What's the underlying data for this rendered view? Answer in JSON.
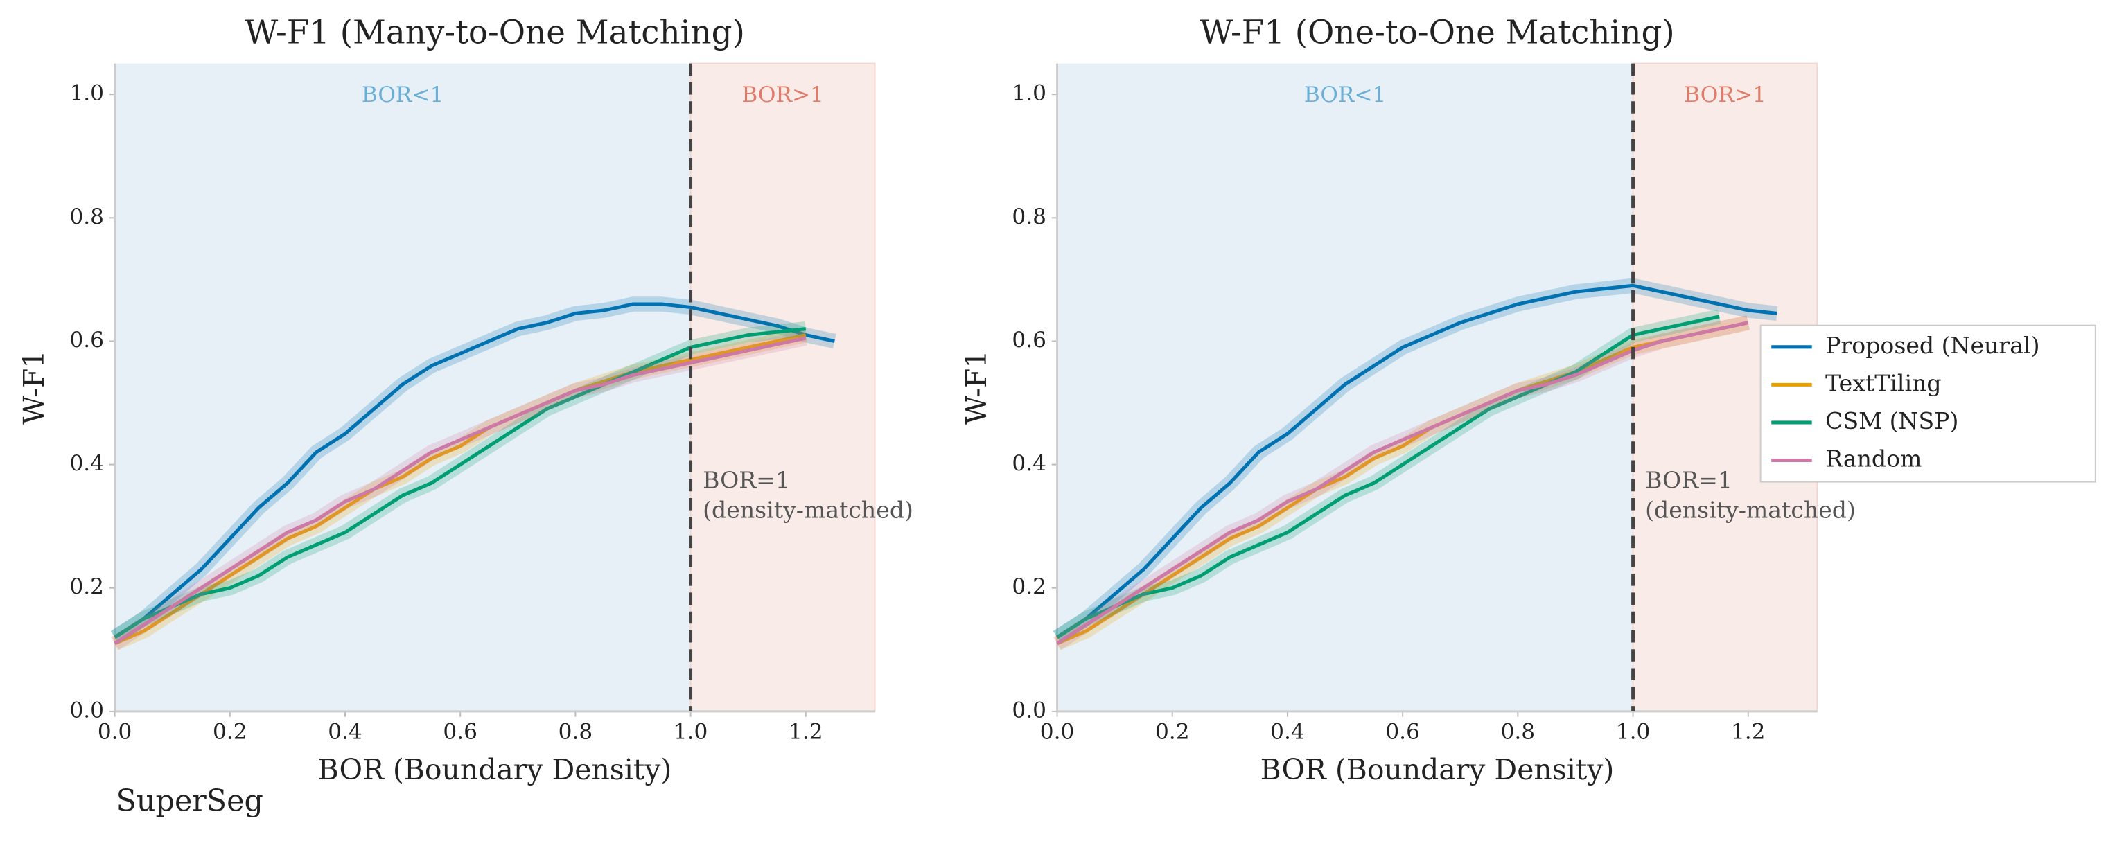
{
  "footer_label": "SuperSeg",
  "chart_data": [
    {
      "type": "line",
      "title": "W-F1 (Many-to-One Matching)",
      "x_label": "BOR (Boundary Density)",
      "y_label": "W-F1",
      "xlim": [
        0,
        1.32
      ],
      "ylim": [
        0,
        1.05
      ],
      "xticks": [
        {
          "value": 0,
          "label": "0.0"
        },
        0.2,
        0.4,
        0.6,
        0.8,
        {
          "value": 1,
          "label": "1.0"
        },
        1.2
      ],
      "yticks": [
        {
          "value": 0,
          "label": "0.0"
        },
        0.2,
        0.4,
        0.6,
        0.8,
        {
          "value": 1,
          "label": "1.0"
        }
      ],
      "vline": 1,
      "vline_label": [
        "BOR=1",
        "(density-matched)"
      ],
      "region_labels": [
        "BOR<1",
        "BOR>1"
      ],
      "x": [
        0,
        0.05,
        0.1,
        0.15,
        0.2,
        0.25,
        0.3,
        0.35,
        0.4,
        0.45,
        0.5,
        0.55,
        0.6,
        0.65,
        0.7,
        0.75,
        0.8,
        0.85,
        0.9,
        0.95,
        1.0,
        1.05,
        1.1,
        1.15,
        1.2,
        1.25
      ],
      "series": [
        {
          "color": "#0072b2",
          "values": [
            0.12,
            0.15,
            0.19,
            0.23,
            0.28,
            0.33,
            0.37,
            0.42,
            0.45,
            0.49,
            0.53,
            0.56,
            0.58,
            0.6,
            0.62,
            0.63,
            0.645,
            0.65,
            0.66,
            0.66,
            0.655,
            0.645,
            0.635,
            0.625,
            0.61,
            0.6
          ]
        },
        {
          "color": "#e69f00",
          "values": [
            0.11,
            0.13,
            0.16,
            0.19,
            0.22,
            0.25,
            0.28,
            0.3,
            0.33,
            0.36,
            0.38,
            0.41,
            0.43,
            0.46,
            0.48,
            0.5,
            0.52,
            0.535,
            0.55,
            0.56,
            0.57,
            0.58,
            0.59,
            0.6,
            0.61,
            null
          ]
        },
        {
          "color": "#009e73",
          "values": [
            0.12,
            0.15,
            0.17,
            0.19,
            0.2,
            0.22,
            0.25,
            0.27,
            0.29,
            0.32,
            0.35,
            0.37,
            0.4,
            0.43,
            0.46,
            0.49,
            0.51,
            0.53,
            0.55,
            0.57,
            0.59,
            0.6,
            0.61,
            0.615,
            0.62,
            null
          ]
        },
        {
          "color": "#cc79a7",
          "values": [
            0.11,
            0.14,
            0.17,
            0.2,
            0.23,
            0.26,
            0.29,
            0.31,
            0.34,
            0.36,
            0.39,
            0.42,
            0.44,
            0.46,
            0.48,
            0.5,
            0.52,
            0.53,
            0.545,
            0.555,
            0.565,
            0.575,
            0.585,
            0.595,
            0.605,
            null
          ]
        }
      ]
    },
    {
      "type": "line",
      "title": "W-F1 (One-to-One Matching)",
      "x_label": "BOR (Boundary Density)",
      "y_label": "W-F1",
      "xlim": [
        0,
        1.32
      ],
      "ylim": [
        0,
        1.05
      ],
      "xticks": [
        {
          "value": 0,
          "label": "0.0"
        },
        0.2,
        0.4,
        0.6,
        0.8,
        {
          "value": 1,
          "label": "1.0"
        },
        1.2
      ],
      "yticks": [
        {
          "value": 0,
          "label": "0.0"
        },
        0.2,
        0.4,
        0.6,
        0.8,
        {
          "value": 1,
          "label": "1.0"
        }
      ],
      "vline": 1,
      "vline_label": [
        "BOR=1",
        "(density-matched)"
      ],
      "region_labels": [
        "BOR<1",
        "BOR>1"
      ],
      "legend": "right",
      "x": [
        0,
        0.05,
        0.1,
        0.15,
        0.2,
        0.25,
        0.3,
        0.35,
        0.4,
        0.45,
        0.5,
        0.55,
        0.6,
        0.65,
        0.7,
        0.75,
        0.8,
        0.85,
        0.9,
        0.95,
        1.0,
        1.05,
        1.1,
        1.15,
        1.2,
        1.25
      ],
      "series": [
        {
          "name": "Proposed (Neural)",
          "color": "#0072b2",
          "values": [
            0.12,
            0.15,
            0.19,
            0.23,
            0.28,
            0.33,
            0.37,
            0.42,
            0.45,
            0.49,
            0.53,
            0.56,
            0.59,
            0.61,
            0.63,
            0.645,
            0.66,
            0.67,
            0.68,
            0.685,
            0.69,
            0.68,
            0.67,
            0.66,
            0.65,
            0.645
          ]
        },
        {
          "name": "TextTiling",
          "color": "#e69f00",
          "values": [
            0.11,
            0.13,
            0.16,
            0.19,
            0.22,
            0.25,
            0.28,
            0.3,
            0.33,
            0.36,
            0.38,
            0.41,
            0.43,
            0.46,
            0.48,
            0.5,
            0.52,
            0.535,
            0.55,
            0.57,
            0.59,
            0.6,
            0.61,
            0.62,
            0.63,
            null
          ]
        },
        {
          "name": "CSM (NSP)",
          "color": "#009e73",
          "values": [
            0.12,
            0.15,
            0.17,
            0.19,
            0.2,
            0.22,
            0.25,
            0.27,
            0.29,
            0.32,
            0.35,
            0.37,
            0.4,
            0.43,
            0.46,
            0.49,
            0.51,
            0.53,
            0.55,
            0.58,
            0.61,
            0.62,
            0.63,
            0.64,
            null,
            null
          ]
        },
        {
          "name": "Random",
          "color": "#cc79a7",
          "values": [
            0.11,
            0.14,
            0.17,
            0.2,
            0.23,
            0.26,
            0.29,
            0.31,
            0.34,
            0.36,
            0.39,
            0.42,
            0.44,
            0.46,
            0.48,
            0.5,
            0.52,
            0.53,
            0.545,
            0.565,
            0.585,
            0.6,
            0.61,
            0.62,
            0.63,
            null
          ]
        }
      ]
    }
  ]
}
